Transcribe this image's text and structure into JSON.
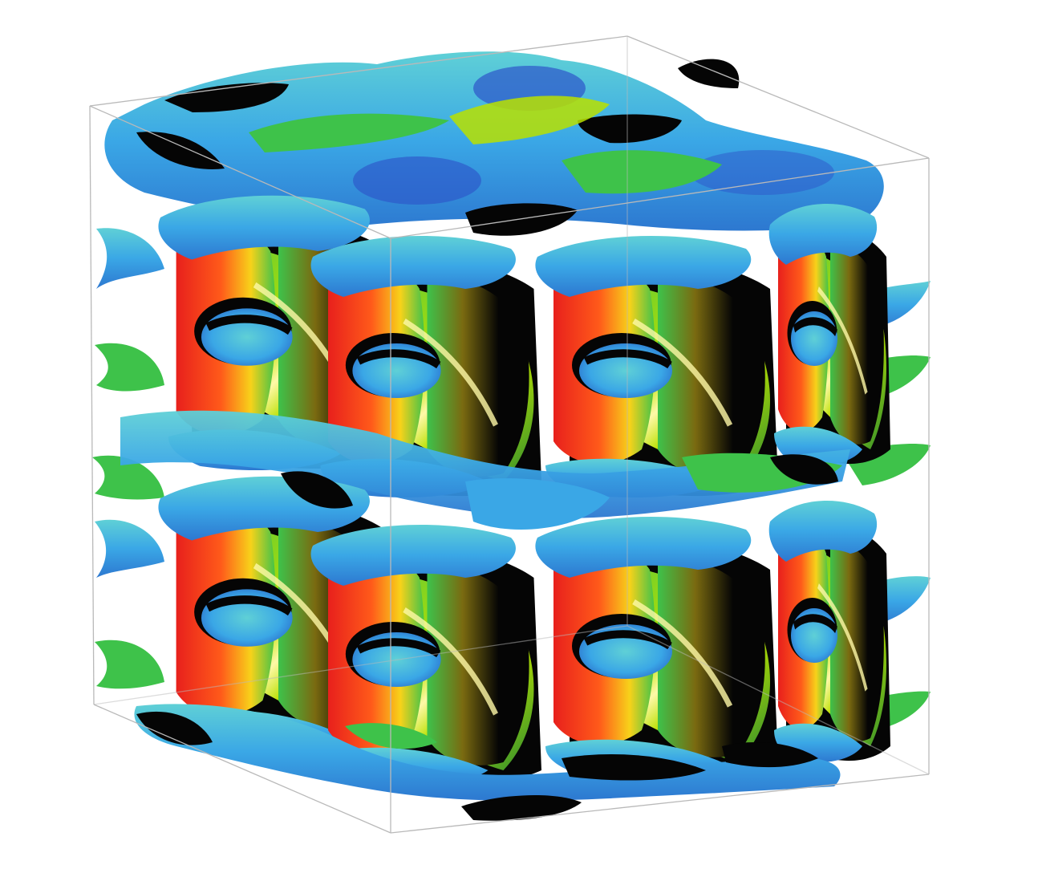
{
  "figure": {
    "description_type": "3d-isosurface-render",
    "background": "#ffffff",
    "box_edge_color": "#b9b9b9",
    "colormap": [
      "#1f4fc8",
      "#3aa7e6",
      "#5fd0d6",
      "#3ec24a",
      "#b8e000",
      "#f7f01a",
      "#ff9a1a",
      "#e8201c"
    ],
    "shadow_color": "#050505",
    "highlight_color": "#fff9a8"
  }
}
